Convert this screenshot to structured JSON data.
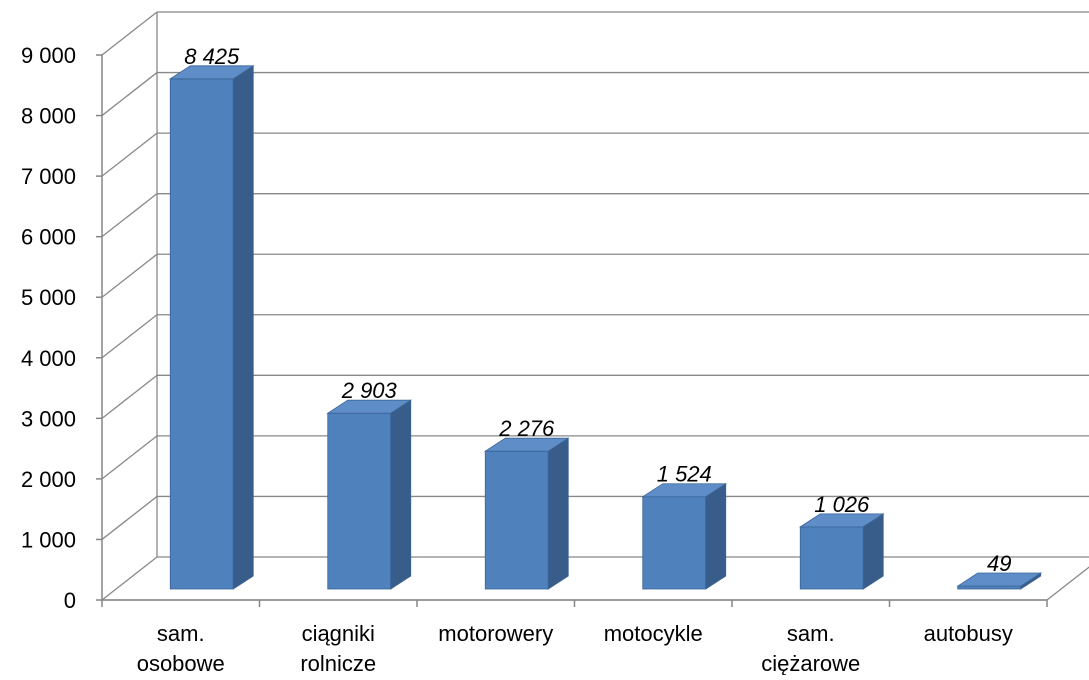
{
  "chart_data": {
    "type": "bar",
    "style": "3d-column",
    "categories": [
      [
        "sam.",
        "osobowe"
      ],
      [
        "ciągniki",
        "rolnicze"
      ],
      [
        "motorowery"
      ],
      [
        "motocykle"
      ],
      [
        "sam.",
        "ciężarowe"
      ],
      [
        "autobusy"
      ]
    ],
    "values": [
      8425,
      2903,
      2276,
      1524,
      1026,
      49
    ],
    "data_labels": [
      "8 425",
      "2 903",
      "2 276",
      "1 524",
      "1 026",
      "49"
    ],
    "y_ticks": [
      0,
      1000,
      2000,
      3000,
      4000,
      5000,
      6000,
      7000,
      8000,
      9000
    ],
    "y_tick_labels": [
      "0",
      "1 000",
      "2 000",
      "3 000",
      "4 000",
      "5 000",
      "6 000",
      "7 000",
      "8 000",
      "9 000"
    ],
    "ylim": [
      0,
      9000
    ],
    "title": "",
    "xlabel": "",
    "ylabel": "",
    "grid": true,
    "legend": "none",
    "colors": {
      "bar_front": "#4F81BD",
      "bar_side": "#385D8A",
      "bar_top": "#5E8DC8",
      "bar_edge": "#3A6596",
      "grid": "#888888",
      "axis": "#868686"
    }
  }
}
